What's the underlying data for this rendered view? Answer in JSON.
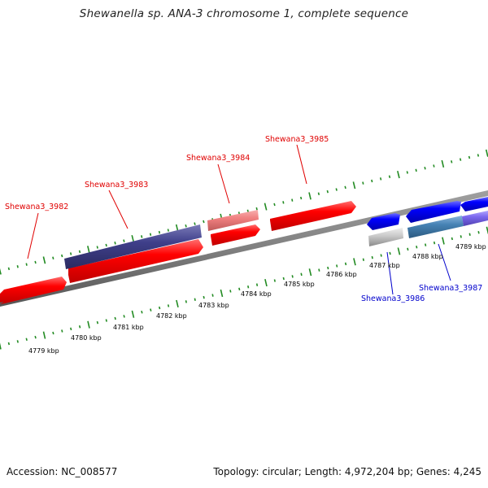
{
  "title": "Shewanella sp. ANA-3 chromosome 1, complete sequence",
  "footer": {
    "accession": "Accession: NC_008577",
    "summary": "Topology: circular; Length: 4,972,204 bp; Genes: 4,245"
  },
  "colors": {
    "forward_gene": "#ff0000",
    "reverse_gene": "#0000ff",
    "pseudo_dark": "#3f3f8a",
    "forward_light": "#f08080",
    "reverse_grey": "#c8c8c8",
    "reverse_teal": "#4682b4",
    "reverse_violet": "#7b68ee",
    "backbone": "#808080",
    "ticks": "#228b22",
    "forward_label": "#e00000",
    "reverse_label": "#0000cc",
    "scale_label": "#000000"
  },
  "scale_labels": [
    "4779 kbp",
    "4780 kbp",
    "4781 kbp",
    "4782 kbp",
    "4783 kbp",
    "4784 kbp",
    "4785 kbp",
    "4786 kbp",
    "4787 kbp",
    "4788 kbp",
    "4789 kbp"
  ],
  "gene_labels": [
    {
      "text": "Shewana3_3982",
      "strand": "forward"
    },
    {
      "text": "Shewana3_3983",
      "strand": "forward"
    },
    {
      "text": "Shewana3_3984",
      "strand": "forward"
    },
    {
      "text": "Shewana3_3985",
      "strand": "forward"
    },
    {
      "text": "Shewana3_3986",
      "strand": "reverse"
    },
    {
      "text": "Shewana3_3987",
      "strand": "reverse"
    }
  ]
}
